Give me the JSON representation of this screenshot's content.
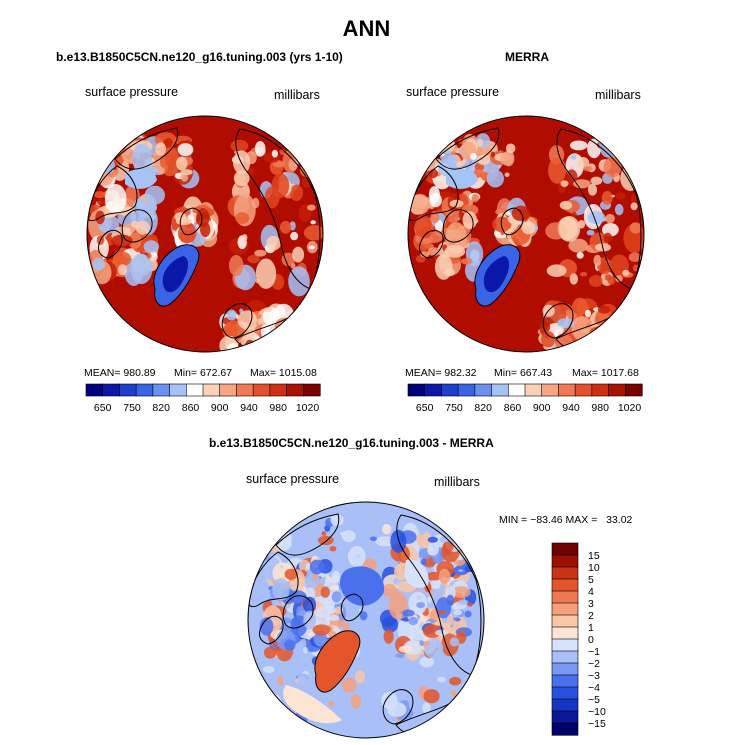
{
  "page": {
    "title": "ANN"
  },
  "colors": {
    "seq_levels": [
      "#00007f",
      "#0b17a8",
      "#1e3ecc",
      "#3a64e6",
      "#6a90f0",
      "#a5c3f7",
      "#ffffff",
      "#fbd0b4",
      "#f6a683",
      "#f07a55",
      "#e6502f",
      "#d22e12",
      "#a81200",
      "#7a0000"
    ],
    "diff_levels": [
      "#00006b",
      "#0a1896",
      "#1535c4",
      "#2850e0",
      "#4a70ee",
      "#7a98f4",
      "#a8bff7",
      "#d6e2fb",
      "#fde5d6",
      "#f9c6a8",
      "#f5a07c",
      "#ef7a52",
      "#e3562b",
      "#c93313",
      "#9b1200",
      "#6e0000"
    ],
    "land_outline": "#000000",
    "ocean_fill": "#b00c00"
  },
  "panels": [
    {
      "title": "b.e13.B1850C5CN.ne120_g16.tuning.003 (yrs 1-10)",
      "variable": "surface pressure",
      "units": "millibars",
      "stats": {
        "mean": "MEAN= 980.89",
        "min": "Min= 672.67",
        "max": "Max= 1015.08"
      }
    },
    {
      "title": "MERRA",
      "variable": "surface pressure",
      "units": "millibars",
      "stats": {
        "mean": "MEAN= 982.32",
        "min": "Min= 667.43",
        "max": "Max= 1017.68"
      }
    },
    {
      "title": "b.e13.B1850C5CN.ne120_g16.tuning.003 - MERRA",
      "variable": "surface pressure",
      "units": "millibars",
      "stats_line": "MIN = −83.46 MAX =   33.02"
    }
  ],
  "chart_data": [
    {
      "type": "heatmap",
      "projection": "north polar stereographic",
      "title": "b.e13.B1850C5CN.ne120_g16.tuning.003 (yrs 1-10)",
      "variable": "surface pressure",
      "units": "millibars",
      "mean": 980.89,
      "min": 672.67,
      "max": 1015.08,
      "colorbar_ticks": [
        "650",
        "750",
        "820",
        "860",
        "900",
        "940",
        "980",
        "1020"
      ],
      "colorbar_levels": [
        650,
        700,
        750,
        800,
        820,
        840,
        860,
        880,
        900,
        920,
        940,
        960,
        980,
        1000,
        1020
      ]
    },
    {
      "type": "heatmap",
      "projection": "north polar stereographic",
      "title": "MERRA",
      "variable": "surface pressure",
      "units": "millibars",
      "mean": 982.32,
      "min": 667.43,
      "max": 1017.68,
      "colorbar_ticks": [
        "650",
        "750",
        "820",
        "860",
        "900",
        "940",
        "980",
        "1020"
      ],
      "colorbar_levels": [
        650,
        700,
        750,
        800,
        820,
        840,
        860,
        880,
        900,
        920,
        940,
        960,
        980,
        1000,
        1020
      ]
    },
    {
      "type": "heatmap",
      "projection": "north polar stereographic",
      "title": "b.e13.B1850C5CN.ne120_g16.tuning.003 - MERRA",
      "variable": "surface pressure",
      "units": "millibars",
      "min": -83.46,
      "max": 33.02,
      "colorbar_ticks": [
        "15",
        "10",
        "5",
        "4",
        "3",
        "2",
        "1",
        "0",
        "−1",
        "−2",
        "−3",
        "−4",
        "−5",
        "−10",
        "−15"
      ],
      "colorbar_levels": [
        -15,
        -10,
        -5,
        -4,
        -3,
        -2,
        -1,
        0,
        1,
        2,
        3,
        4,
        5,
        10,
        15
      ]
    }
  ]
}
